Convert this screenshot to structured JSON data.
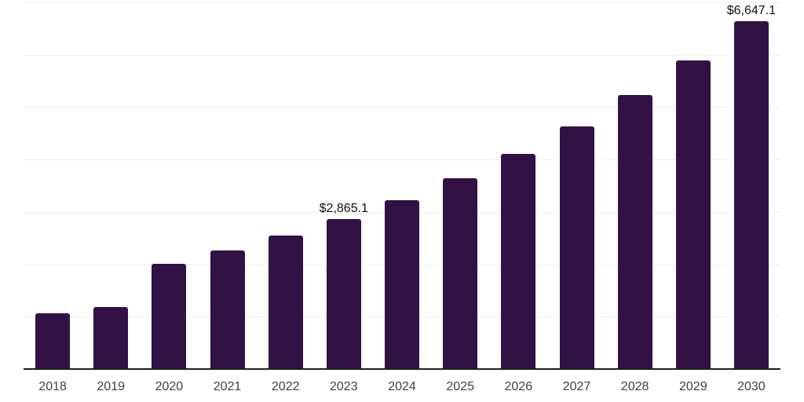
{
  "chart": {
    "background_color": "#ffffff",
    "bar_color": "#321245",
    "grid_color": "#eeeeee",
    "axis_color": "#1f1f1f",
    "data_label_color": "#111111",
    "tick_label_color": "#404040"
  },
  "chart_data": {
    "type": "bar",
    "title": "",
    "xlabel": "",
    "ylabel": "",
    "categories": [
      "2018",
      "2019",
      "2020",
      "2021",
      "2022",
      "2023",
      "2024",
      "2025",
      "2026",
      "2027",
      "2028",
      "2029",
      "2030"
    ],
    "values": [
      1070,
      1185,
      2015,
      2265,
      2545,
      2865.1,
      3230,
      3645,
      4110,
      4635,
      5225,
      5890,
      6647.1
    ],
    "data_labels": [
      "",
      "",
      "",
      "",
      "",
      "$2,865.1",
      "",
      "",
      "",
      "",
      "",
      "",
      "$6,647.1"
    ],
    "ylim": [
      0,
      7000
    ],
    "grid_step": 1000,
    "grid": "horizontal-only",
    "y_axis_tick_labels": "none",
    "legend": "none",
    "value_unit_prefix": "$"
  }
}
